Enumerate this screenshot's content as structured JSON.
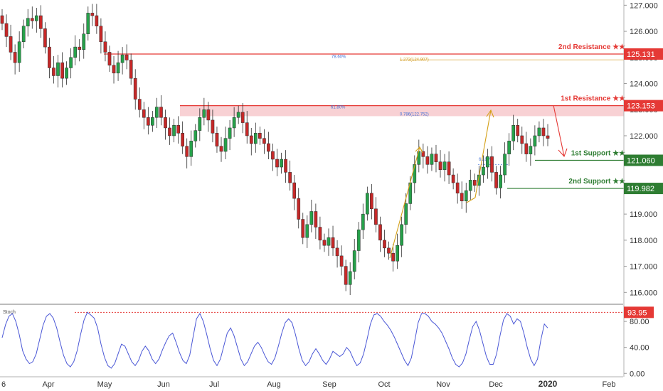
{
  "chart_data": [
    {
      "type": "candlestick",
      "yticks": [
        "127.000",
        "126.000",
        "125.000",
        "124.000",
        "123.000",
        "122.000",
        "121.000",
        "120.000",
        "119.000",
        "118.000",
        "117.000",
        "116.000"
      ],
      "ytick_values": [
        127,
        126,
        125,
        124,
        123,
        122,
        121,
        120,
        119,
        118,
        117,
        116
      ],
      "ylim": [
        115.6,
        127.2
      ],
      "xticks": [
        "6",
        "Apr",
        "May",
        "Jun",
        "Jul",
        "Aug",
        "Sep",
        "Oct",
        "Nov",
        "Dec",
        "2020",
        "Feb"
      ],
      "xtick_bold": "2020",
      "levels": [
        {
          "label": "2nd Resistance ★★",
          "value": "125.131",
          "price": 125.131,
          "color": "#e53935",
          "kind": "resistance"
        },
        {
          "label": "1st Resistance ★★",
          "value": "123.153",
          "price": 123.153,
          "color": "#e53935",
          "kind": "resistance"
        },
        {
          "label": "1st Support ★★",
          "value": "121.060",
          "price": 121.06,
          "color": "#2e7d32",
          "kind": "support"
        },
        {
          "label": "2nd Support ★★",
          "value": "119.982",
          "price": 119.982,
          "color": "#2e7d32",
          "kind": "support"
        }
      ],
      "fib_labels": [
        {
          "text": "78.60%",
          "color": "#3f6fd6"
        },
        {
          "text": "1.272(124.907)",
          "color": "#d19a1a"
        },
        {
          "text": "61.80%",
          "color": "#3f6fd6"
        },
        {
          "text": "0.786(122.752)",
          "color": "#3f6fd6"
        },
        {
          "text": "61.80%",
          "color": "#3f6fd6"
        }
      ],
      "resistance_zone": [
        122.75,
        123.153
      ],
      "candles": [
        [
          126.6,
          126.3
        ],
        [
          126.3,
          125.8
        ],
        [
          125.8,
          125.2
        ],
        [
          125.2,
          124.8
        ],
        [
          124.8,
          125.6
        ],
        [
          125.6,
          126.2
        ],
        [
          126.2,
          126.5
        ],
        [
          126.5,
          126.4
        ],
        [
          126.4,
          126.6
        ],
        [
          126.6,
          126.1
        ],
        [
          126.1,
          125.4
        ],
        [
          125.4,
          124.6
        ],
        [
          124.6,
          124.3
        ],
        [
          124.3,
          124.8
        ],
        [
          124.8,
          124.2
        ],
        [
          124.2,
          124.6
        ],
        [
          124.6,
          125.0
        ],
        [
          125.0,
          125.4
        ],
        [
          125.4,
          125.3
        ],
        [
          125.3,
          125.9
        ],
        [
          125.9,
          126.7
        ],
        [
          126.7,
          126.6
        ],
        [
          126.6,
          126.2
        ],
        [
          126.2,
          125.6
        ],
        [
          125.6,
          125.2
        ],
        [
          125.2,
          124.7
        ],
        [
          124.7,
          124.4
        ],
        [
          124.4,
          124.8
        ],
        [
          124.8,
          125.1
        ],
        [
          125.1,
          124.9
        ],
        [
          124.9,
          124.2
        ],
        [
          124.2,
          123.4
        ],
        [
          123.4,
          123.0
        ],
        [
          123.0,
          122.7
        ],
        [
          122.7,
          122.4
        ],
        [
          122.4,
          122.7
        ],
        [
          122.7,
          123.1
        ],
        [
          123.1,
          122.7
        ],
        [
          122.7,
          122.3
        ],
        [
          122.3,
          122.0
        ],
        [
          122.0,
          122.4
        ],
        [
          122.4,
          122.1
        ],
        [
          122.1,
          121.6
        ],
        [
          121.6,
          121.2
        ],
        [
          121.2,
          121.8
        ],
        [
          121.8,
          122.2
        ],
        [
          122.2,
          122.7
        ],
        [
          122.7,
          123.0
        ],
        [
          123.0,
          122.6
        ],
        [
          122.6,
          122.1
        ],
        [
          122.1,
          121.6
        ],
        [
          121.6,
          121.4
        ],
        [
          121.4,
          121.9
        ],
        [
          121.9,
          122.3
        ],
        [
          122.3,
          122.7
        ],
        [
          122.7,
          122.9
        ],
        [
          122.9,
          122.5
        ],
        [
          122.5,
          122.0
        ],
        [
          122.0,
          121.7
        ],
        [
          121.7,
          122.1
        ],
        [
          122.1,
          121.9
        ],
        [
          121.9,
          121.7
        ],
        [
          121.7,
          121.4
        ],
        [
          121.4,
          121.1
        ],
        [
          121.1,
          120.8
        ],
        [
          120.8,
          121.1
        ],
        [
          121.1,
          120.6
        ],
        [
          120.6,
          120.2
        ],
        [
          120.2,
          119.6
        ],
        [
          119.6,
          118.8
        ],
        [
          118.8,
          118.1
        ],
        [
          118.1,
          118.6
        ],
        [
          118.6,
          119.1
        ],
        [
          119.1,
          118.5
        ],
        [
          118.5,
          118.0
        ],
        [
          118.0,
          117.8
        ],
        [
          117.8,
          118.1
        ],
        [
          118.1,
          117.7
        ],
        [
          117.7,
          117.4
        ],
        [
          117.4,
          117.0
        ],
        [
          117.0,
          116.3
        ],
        [
          116.3,
          116.8
        ],
        [
          116.8,
          117.6
        ],
        [
          117.6,
          118.4
        ],
        [
          118.4,
          119.0
        ],
        [
          119.0,
          119.8
        ],
        [
          119.8,
          119.2
        ],
        [
          119.2,
          118.6
        ],
        [
          118.6,
          118.0
        ],
        [
          118.0,
          117.7
        ],
        [
          117.7,
          117.5
        ],
        [
          117.5,
          117.2
        ],
        [
          117.2,
          117.8
        ],
        [
          117.8,
          118.6
        ],
        [
          118.6,
          119.4
        ],
        [
          119.4,
          120.2
        ],
        [
          120.2,
          120.9
        ],
        [
          120.9,
          121.4
        ],
        [
          121.4,
          121.2
        ],
        [
          121.2,
          120.9
        ],
        [
          120.9,
          121.3
        ],
        [
          121.3,
          121.0
        ],
        [
          121.0,
          120.7
        ],
        [
          120.7,
          121.0
        ],
        [
          121.0,
          120.5
        ],
        [
          120.5,
          120.2
        ],
        [
          120.2,
          119.8
        ],
        [
          119.8,
          119.5
        ],
        [
          119.5,
          119.9
        ],
        [
          119.9,
          120.3
        ],
        [
          120.3,
          120.1
        ],
        [
          120.1,
          120.5
        ],
        [
          120.5,
          120.8
        ],
        [
          120.8,
          121.2
        ],
        [
          121.2,
          120.6
        ],
        [
          120.6,
          120.0
        ],
        [
          120.0,
          120.5
        ],
        [
          120.5,
          121.3
        ],
        [
          121.3,
          121.8
        ],
        [
          121.8,
          122.4
        ],
        [
          122.4,
          122.0
        ],
        [
          122.0,
          121.7
        ],
        [
          121.7,
          121.3
        ],
        [
          121.3,
          121.6
        ],
        [
          121.6,
          122.0
        ],
        [
          122.0,
          122.3
        ],
        [
          122.3,
          122.0
        ],
        [
          122.0,
          121.9
        ]
      ]
    },
    {
      "type": "line",
      "title": "Stoch",
      "yticks": [
        "80.00",
        "40.00",
        "0.00"
      ],
      "ytick_values": [
        80,
        40,
        0
      ],
      "ylim": [
        -3,
        102
      ],
      "marker_value": "93.95",
      "marker_level": 93.95,
      "values": [
        55,
        75,
        88,
        92,
        80,
        60,
        35,
        22,
        15,
        18,
        30,
        52,
        74,
        88,
        92,
        85,
        70,
        48,
        28,
        15,
        10,
        18,
        35,
        60,
        82,
        94,
        90,
        85,
        70,
        45,
        25,
        12,
        8,
        15,
        30,
        45,
        42,
        30,
        18,
        12,
        20,
        34,
        42,
        35,
        22,
        15,
        22,
        36,
        48,
        58,
        62,
        48,
        32,
        20,
        15,
        28,
        56,
        84,
        92,
        80,
        60,
        38,
        20,
        12,
        22,
        42,
        62,
        70,
        58,
        40,
        22,
        12,
        18,
        30,
        42,
        48,
        40,
        28,
        18,
        14,
        24,
        42,
        62,
        78,
        84,
        78,
        60,
        38,
        20,
        12,
        18,
        30,
        38,
        30,
        20,
        14,
        22,
        34,
        30,
        26,
        30,
        40,
        34,
        22,
        12,
        16,
        30,
        52,
        76,
        90,
        92,
        88,
        80,
        74,
        66,
        56,
        44,
        32,
        20,
        12,
        24,
        50,
        78,
        92,
        92,
        88,
        80,
        76,
        70,
        62,
        50,
        38,
        24,
        14,
        10,
        16,
        30,
        52,
        72,
        80,
        66,
        46,
        26,
        14,
        14,
        30,
        58,
        82,
        92,
        88,
        76,
        84,
        80,
        62,
        40,
        22,
        12,
        22,
        52,
        76,
        70
      ]
    }
  ]
}
